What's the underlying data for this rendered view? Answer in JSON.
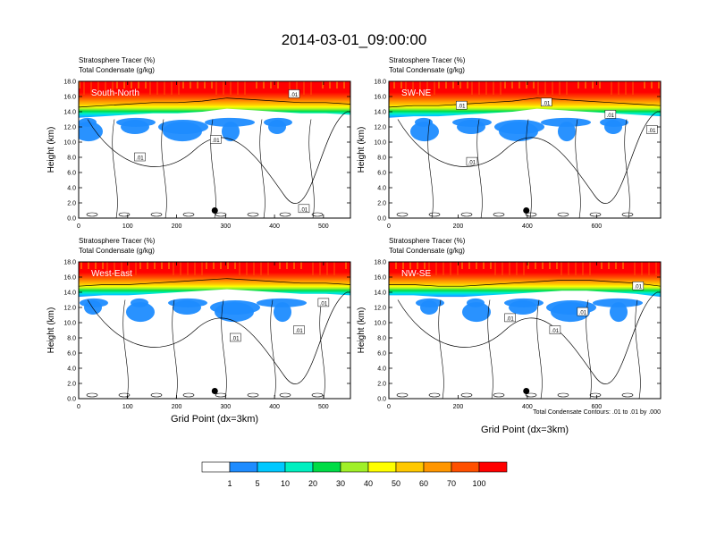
{
  "title": "2014-03-01_09:00:00",
  "field_label_1": "Stratosphere Tracer   (%)",
  "field_label_2": "Total Condensate   (g/kg)",
  "y_axis_label": "Height (km)",
  "x_axis_label": "Grid Point (dx=3km)",
  "contour_info": "Total Condensate Contours: .01 to .01 by .000",
  "colorbar": {
    "colors": [
      "#ffffff",
      "#1e8cff",
      "#00c8ff",
      "#00f0c0",
      "#00dc46",
      "#a0f028",
      "#ffff00",
      "#ffc800",
      "#ff9600",
      "#ff5000",
      "#ff0000"
    ],
    "labels": [
      "1",
      "5",
      "10",
      "20",
      "30",
      "40",
      "50",
      "60",
      "70",
      "100"
    ]
  },
  "chart_data": [
    {
      "type": "heatmap",
      "panel_label": "South-North",
      "x_ticks": [
        "0",
        "100",
        "200",
        "300",
        "400",
        "500"
      ],
      "y_ticks": [
        "0.0",
        "2.0",
        "4.0",
        "6.0",
        "8.0",
        "10.0",
        "12.0",
        "14.0",
        "16.0",
        "18.0"
      ],
      "xlim": [
        0,
        555
      ],
      "ylim": [
        0,
        18
      ],
      "tropopause_km": [
        15.4,
        15.6,
        15.8,
        16.0,
        16.0,
        16.2,
        16.6,
        16.4,
        16.2,
        16.0,
        16.0,
        15.8
      ],
      "contour_labels": [
        {
          "text": ".01",
          "x": 125,
          "y": 8.0
        },
        {
          "text": ".01",
          "x": 280,
          "y": 10.3
        },
        {
          "text": ".01",
          "x": 440,
          "y": 16.3
        },
        {
          "text": ".01",
          "x": 460,
          "y": 1.2
        }
      ],
      "marker": {
        "x": 278,
        "y": 1.0
      }
    },
    {
      "type": "heatmap",
      "panel_label": "SW-NE",
      "x_ticks": [
        "0",
        "200",
        "400",
        "600"
      ],
      "y_ticks": [
        "0.0",
        "2.0",
        "4.0",
        "6.0",
        "8.0",
        "10.0",
        "12.0",
        "14.0",
        "16.0",
        "18.0"
      ],
      "xlim": [
        0,
        785
      ],
      "ylim": [
        0,
        18
      ],
      "tropopause_km": [
        15.4,
        15.6,
        15.6,
        15.8,
        16.0,
        16.2,
        16.6,
        16.4,
        16.2,
        16.0,
        15.8,
        15.6
      ],
      "contour_labels": [
        {
          "text": ".01",
          "x": 210,
          "y": 14.8
        },
        {
          "text": ".01",
          "x": 455,
          "y": 15.2
        },
        {
          "text": ".01",
          "x": 640,
          "y": 13.6
        },
        {
          "text": ".01",
          "x": 760,
          "y": 11.6
        },
        {
          "text": ".01",
          "x": 240,
          "y": 7.4
        }
      ],
      "marker": {
        "x": 397,
        "y": 1.0
      }
    },
    {
      "type": "heatmap",
      "panel_label": "West-East",
      "x_ticks": [
        "0",
        "100",
        "200",
        "300",
        "400",
        "500"
      ],
      "y_ticks": [
        "0.0",
        "2.0",
        "4.0",
        "6.0",
        "8.0",
        "10.0",
        "12.0",
        "14.0",
        "16.0",
        "18.0"
      ],
      "xlim": [
        0,
        555
      ],
      "ylim": [
        0,
        18
      ],
      "tropopause_km": [
        15.6,
        15.8,
        15.8,
        16.0,
        16.2,
        16.4,
        16.6,
        16.4,
        16.2,
        16.0,
        16.0,
        15.8
      ],
      "contour_labels": [
        {
          "text": ".01",
          "x": 320,
          "y": 8.0
        },
        {
          "text": ".01",
          "x": 450,
          "y": 9.0
        },
        {
          "text": ".01",
          "x": 500,
          "y": 12.6
        }
      ],
      "marker": {
        "x": 278,
        "y": 1.0
      }
    },
    {
      "type": "heatmap",
      "panel_label": "NW-SE",
      "x_ticks": [
        "0",
        "200",
        "400",
        "600"
      ],
      "y_ticks": [
        "0.0",
        "2.0",
        "4.0",
        "6.0",
        "8.0",
        "10.0",
        "12.0",
        "14.0",
        "16.0",
        "18.0"
      ],
      "xlim": [
        0,
        785
      ],
      "ylim": [
        0,
        18
      ],
      "tropopause_km": [
        15.8,
        15.8,
        15.6,
        15.6,
        15.8,
        16.0,
        16.2,
        16.4,
        16.4,
        16.2,
        16.0,
        15.6
      ],
      "contour_labels": [
        {
          "text": ".01",
          "x": 350,
          "y": 10.6
        },
        {
          "text": ".01",
          "x": 480,
          "y": 9.0
        },
        {
          "text": ".01",
          "x": 560,
          "y": 11.4
        },
        {
          "text": ".01",
          "x": 720,
          "y": 14.8
        }
      ],
      "marker": {
        "x": 397,
        "y": 1.0
      }
    }
  ]
}
